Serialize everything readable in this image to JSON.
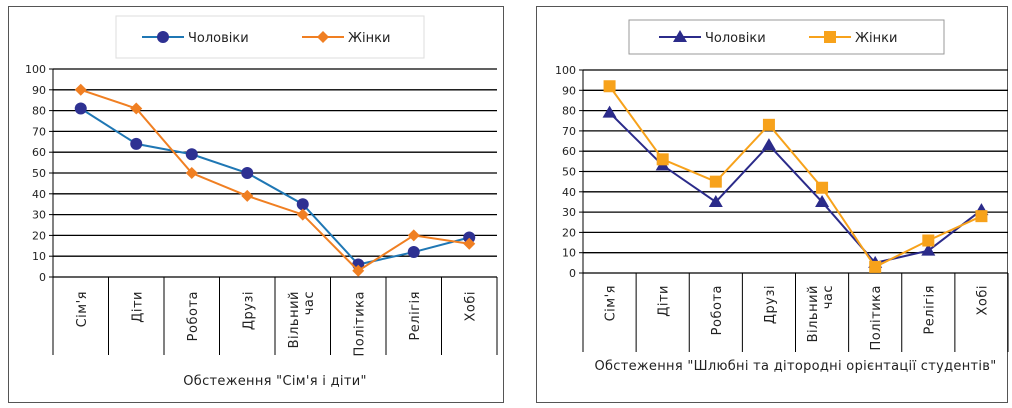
{
  "chart_data": [
    {
      "type": "line",
      "title": "",
      "xlabel": "Обстеження \"Сім'я і діти\"",
      "ylabel": "",
      "ylim": [
        0,
        100
      ],
      "yticks": [
        "0",
        "10",
        "20",
        "30",
        "40",
        "50",
        "60",
        "70",
        "80",
        "90",
        "100"
      ],
      "categories": [
        "Сім'я",
        "Діти",
        "Робота",
        "Друзі",
        "Вільний час",
        "Політика",
        "Релігія",
        "Хобі"
      ],
      "grid": true,
      "legend": "top",
      "series": [
        {
          "name": "Чоловіки",
          "color": "#1f77b4",
          "marker": "circle",
          "values": [
            81,
            64,
            59,
            50,
            35,
            6,
            12,
            19
          ]
        },
        {
          "name": "Жінки",
          "color": "#f07f22",
          "marker": "diamond",
          "values": [
            90,
            81,
            50,
            39,
            30,
            3,
            20,
            16
          ]
        }
      ]
    },
    {
      "type": "line",
      "title": "",
      "xlabel": "Обстеження \"Шлюбні та дітородні орієнтації студентів\"",
      "ylabel": "",
      "ylim": [
        0,
        100
      ],
      "yticks": [
        "0",
        "10",
        "20",
        "30",
        "40",
        "50",
        "60",
        "70",
        "80",
        "90",
        "100"
      ],
      "categories": [
        "Сім'я",
        "Діти",
        "Робота",
        "Друзі",
        "Вільний час",
        "Політика",
        "Релігія",
        "Хобі"
      ],
      "grid": true,
      "legend": "top",
      "series": [
        {
          "name": "Чоловіки",
          "color": "#2b2b8a",
          "marker": "triangle",
          "values": [
            79,
            53,
            35,
            63,
            35,
            5,
            11,
            31
          ]
        },
        {
          "name": "Жінки",
          "color": "#f7a21b",
          "marker": "square",
          "values": [
            92,
            56,
            45,
            73,
            42,
            3,
            16,
            28
          ]
        }
      ]
    }
  ]
}
